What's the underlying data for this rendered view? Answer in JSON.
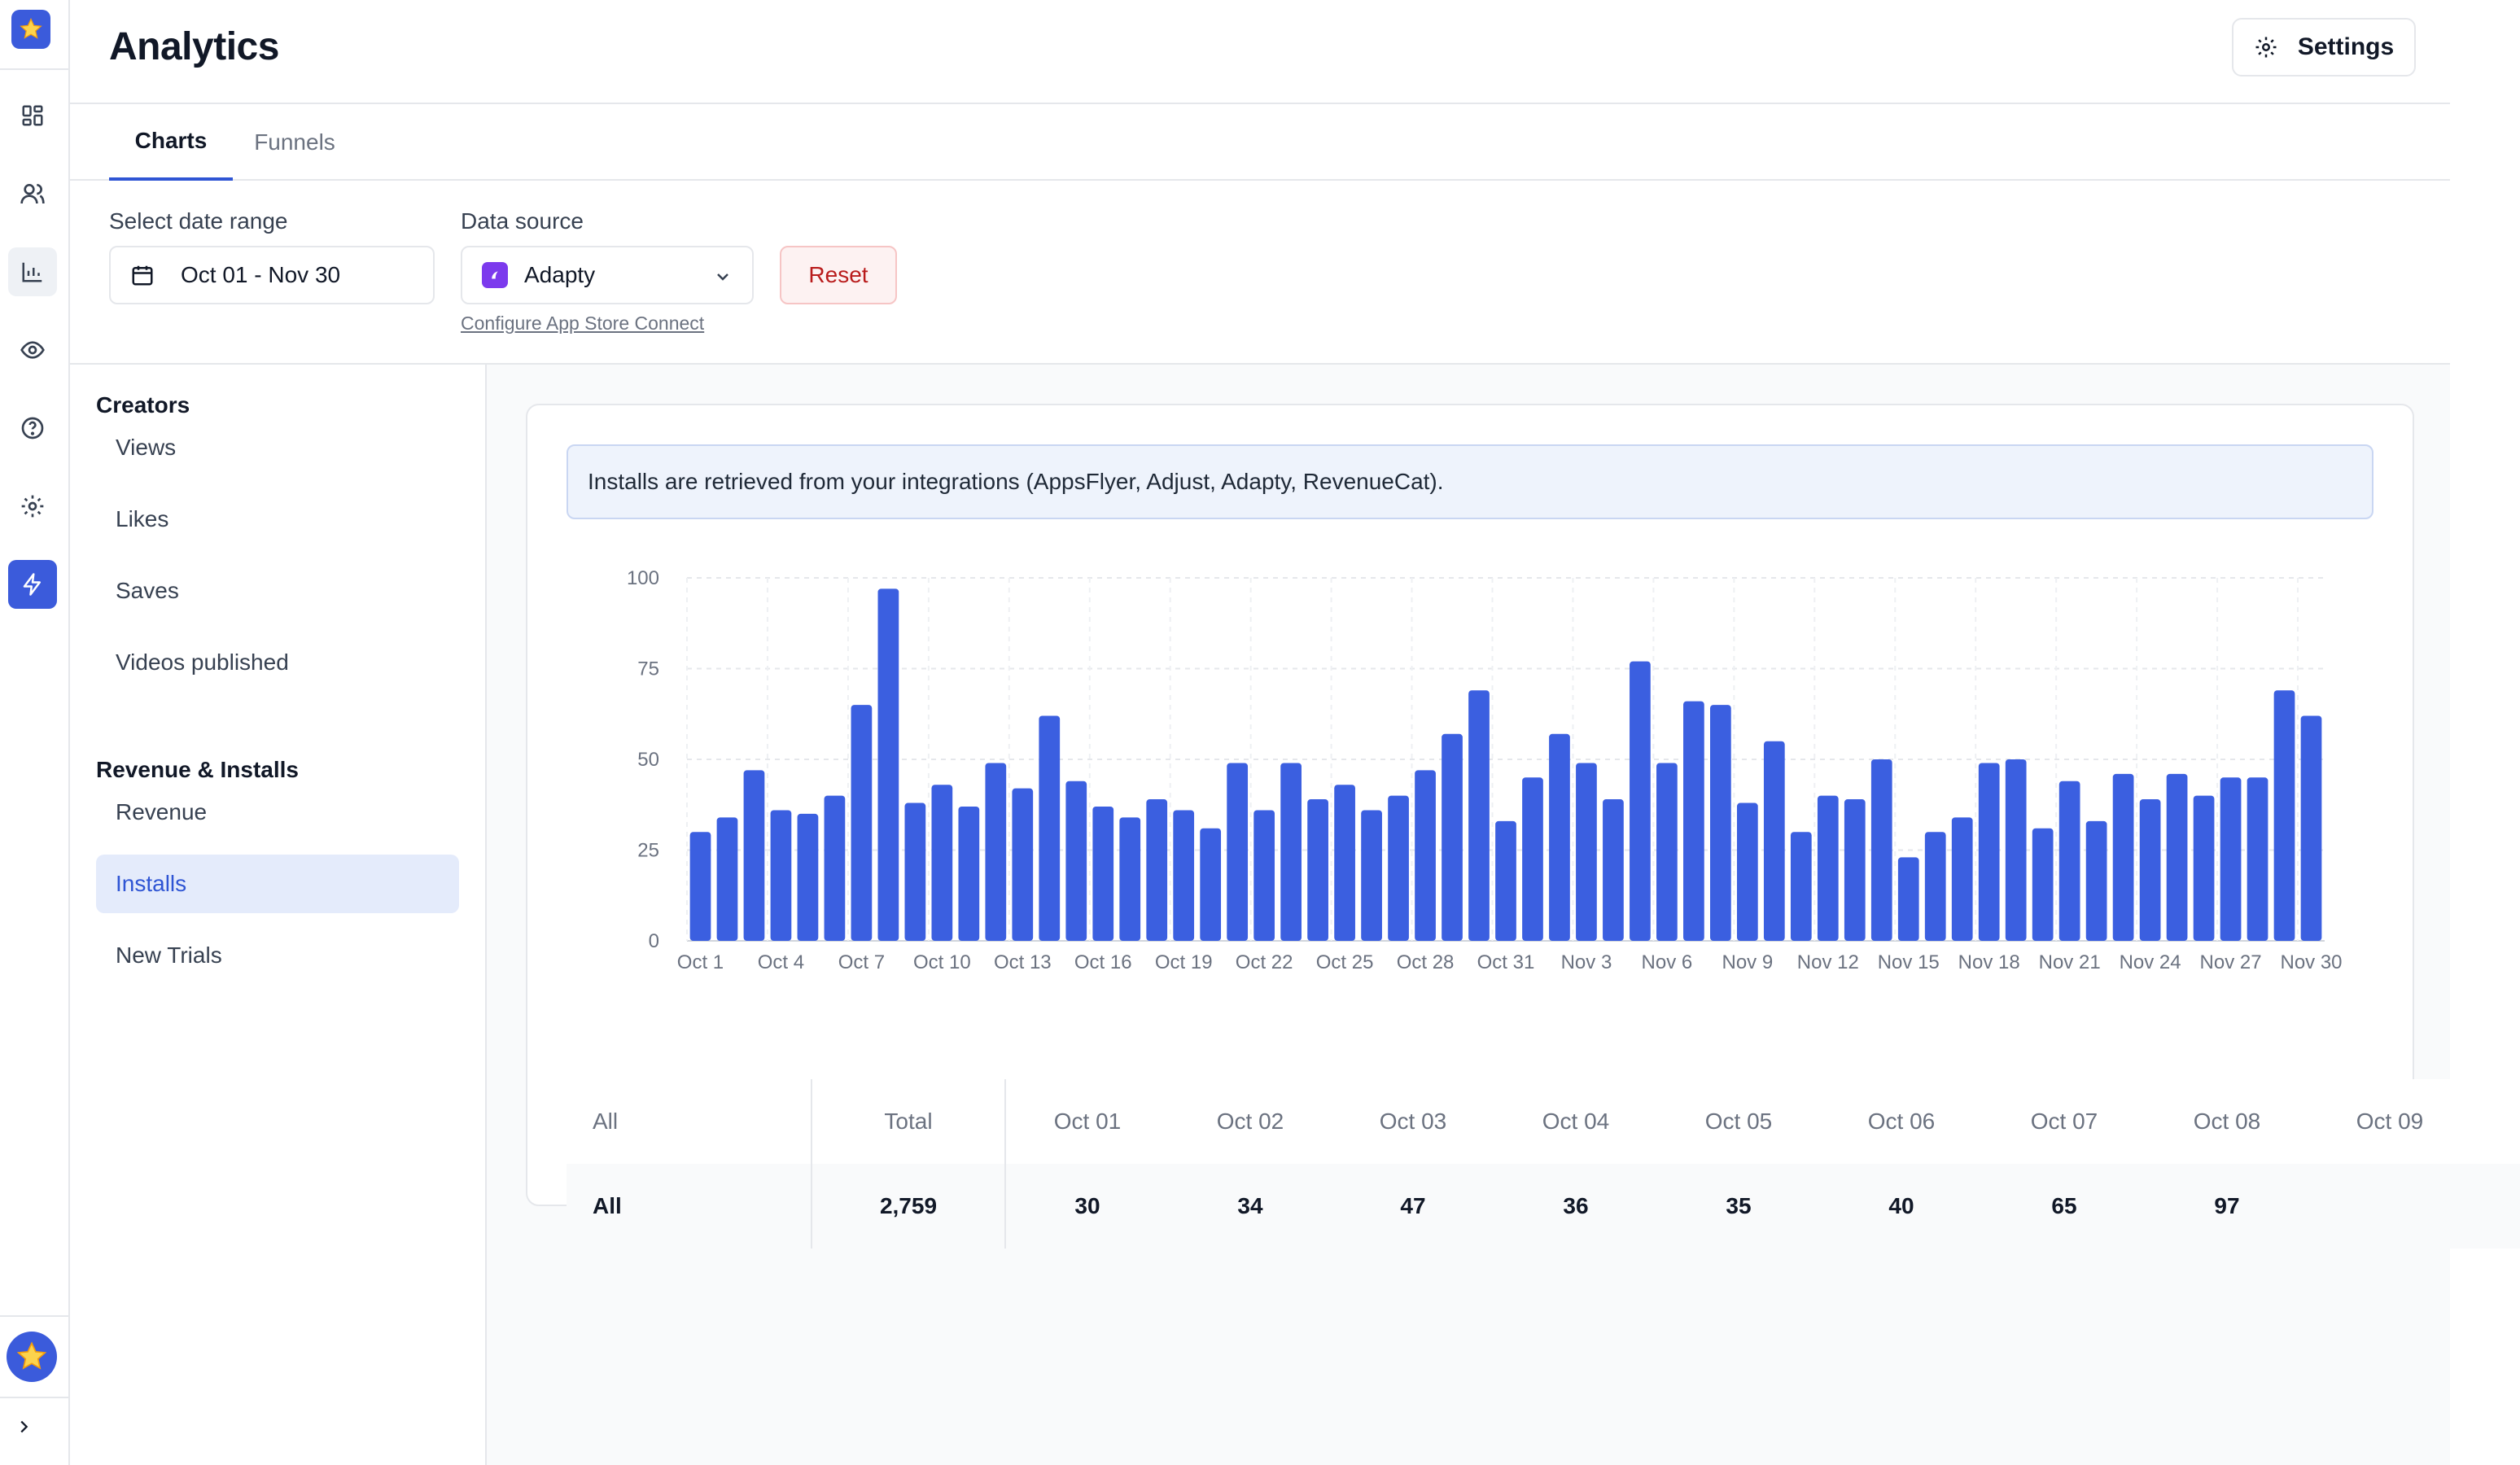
{
  "page": {
    "title": "Analytics"
  },
  "header": {
    "settings_label": "Settings"
  },
  "tabs": [
    {
      "label": "Charts",
      "active": true
    },
    {
      "label": "Funnels",
      "active": false
    }
  ],
  "filters": {
    "date_range_label": "Select date range",
    "date_range_value": "Oct 01 - Nov 30",
    "data_source_label": "Data source",
    "data_source_value": "Adapty",
    "reset_label": "Reset",
    "configure_link": "Configure App Store Connect"
  },
  "subnav": {
    "sections": [
      {
        "title": "Creators",
        "items": [
          "Views",
          "Likes",
          "Saves",
          "Videos published"
        ]
      },
      {
        "title": "Revenue & Installs",
        "items": [
          "Revenue",
          "Installs",
          "New Trials"
        ]
      }
    ],
    "active_item": "Installs"
  },
  "info_banner": "Installs are retrieved from your integrations (AppsFlyer, Adjust, Adapty, RevenueCat).",
  "chart_data": {
    "type": "bar",
    "color": "#3b5fe0",
    "ylim": [
      0,
      100
    ],
    "yticks": [
      0,
      25,
      50,
      75,
      100
    ],
    "grid": true,
    "xtick_labels": [
      "Oct 1",
      "Oct 4",
      "Oct 7",
      "Oct 10",
      "Oct 13",
      "Oct 16",
      "Oct 19",
      "Oct 22",
      "Oct 25",
      "Oct 28",
      "Oct 31",
      "Nov 3",
      "Nov 6",
      "Nov 9",
      "Nov 12",
      "Nov 15",
      "Nov 18",
      "Nov 21",
      "Nov 24",
      "Nov 27",
      "Nov 30"
    ],
    "categories": [
      "Oct 1",
      "Oct 2",
      "Oct 3",
      "Oct 4",
      "Oct 5",
      "Oct 6",
      "Oct 7",
      "Oct 8",
      "Oct 9",
      "Oct 10",
      "Oct 11",
      "Oct 12",
      "Oct 13",
      "Oct 14",
      "Oct 15",
      "Oct 16",
      "Oct 17",
      "Oct 18",
      "Oct 19",
      "Oct 20",
      "Oct 21",
      "Oct 22",
      "Oct 23",
      "Oct 24",
      "Oct 25",
      "Oct 26",
      "Oct 27",
      "Oct 28",
      "Oct 29",
      "Oct 30",
      "Oct 31",
      "Nov 1",
      "Nov 2",
      "Nov 3",
      "Nov 4",
      "Nov 5",
      "Nov 6",
      "Nov 7",
      "Nov 8",
      "Nov 9",
      "Nov 10",
      "Nov 11",
      "Nov 12",
      "Nov 13",
      "Nov 14",
      "Nov 15",
      "Nov 16",
      "Nov 17",
      "Nov 18",
      "Nov 19",
      "Nov 20",
      "Nov 21",
      "Nov 22",
      "Nov 23",
      "Nov 24",
      "Nov 25",
      "Nov 26",
      "Nov 27",
      "Nov 28",
      "Nov 29",
      "Nov 30"
    ],
    "values": [
      30,
      34,
      47,
      36,
      35,
      40,
      65,
      97,
      38,
      43,
      37,
      49,
      42,
      62,
      44,
      37,
      34,
      39,
      36,
      31,
      49,
      36,
      49,
      39,
      43,
      36,
      40,
      47,
      57,
      69,
      33,
      45,
      57,
      49,
      39,
      77,
      49,
      66,
      65,
      38,
      55,
      30,
      40,
      39,
      50,
      23,
      30,
      34,
      49,
      50,
      31,
      44,
      33,
      46,
      39,
      46,
      40,
      45,
      45,
      69,
      62
    ]
  },
  "table": {
    "headers": [
      "All",
      "Total",
      "Oct 01",
      "Oct 02",
      "Oct 03",
      "Oct 04",
      "Oct 05",
      "Oct 06",
      "Oct 07",
      "Oct 08",
      "Oct 09"
    ],
    "rows": [
      {
        "label": "All",
        "total": "2,759",
        "days": [
          "30",
          "34",
          "47",
          "36",
          "35",
          "40",
          "65",
          "97",
          ""
        ]
      }
    ]
  }
}
